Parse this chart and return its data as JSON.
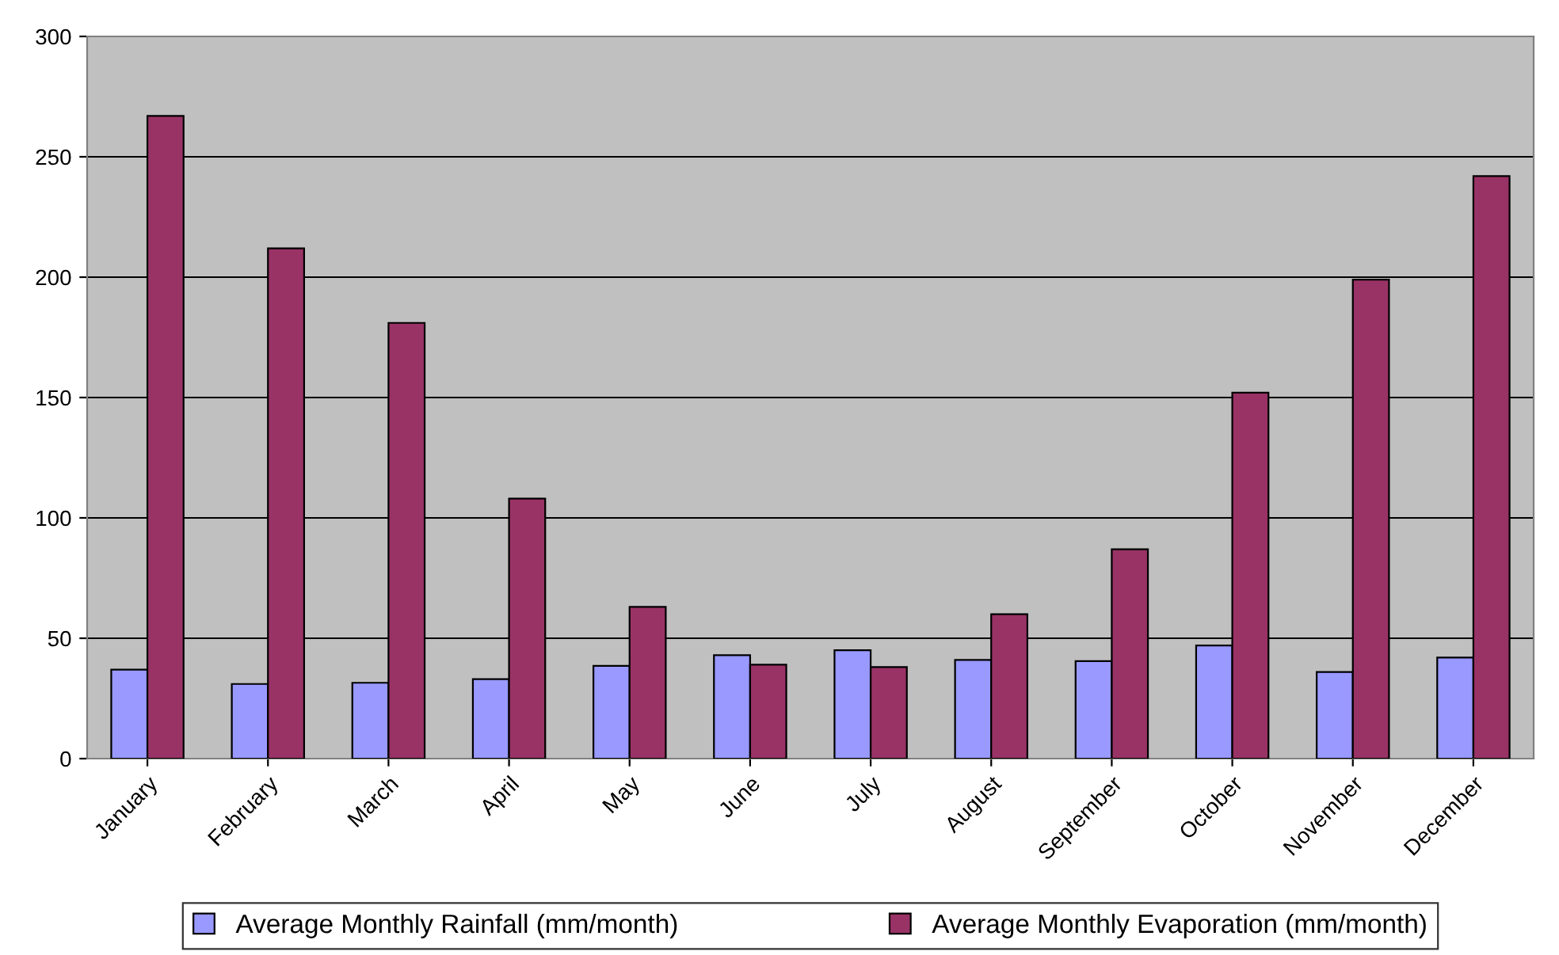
{
  "chart_data": {
    "type": "bar",
    "categories": [
      "January",
      "February",
      "March",
      "April",
      "May",
      "June",
      "July",
      "August",
      "September",
      "October",
      "November",
      "December"
    ],
    "series": [
      {
        "name": "Average Monthly Rainfall (mm/month)",
        "color": "#9999ff",
        "values": [
          37,
          31,
          31.5,
          33,
          38.5,
          43,
          45,
          41,
          40.5,
          47,
          36,
          42
        ]
      },
      {
        "name": "Average Monthly Evaporation (mm/month)",
        "color": "#993366",
        "values": [
          267,
          212,
          181,
          108,
          63,
          39,
          38,
          60,
          87,
          152,
          199,
          242
        ]
      }
    ],
    "ylim": [
      0,
      300
    ],
    "yticks": [
      0,
      50,
      100,
      150,
      200,
      250,
      300
    ],
    "grid": "y",
    "legend": "bottom"
  }
}
